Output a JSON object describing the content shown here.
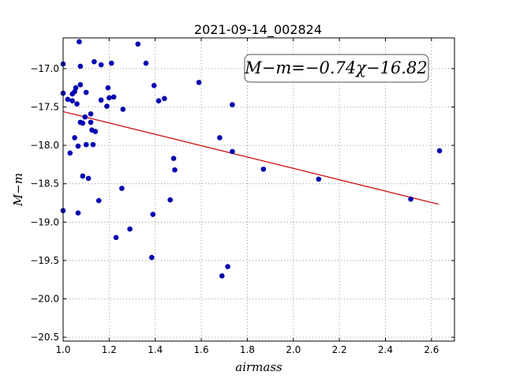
{
  "chart_data": {
    "type": "scatter",
    "title": "2021-09-14_002824",
    "xlabel": "airmass",
    "ylabel": "M−m",
    "xlim": [
      1.0,
      2.7
    ],
    "ylim": [
      -20.55,
      -16.6
    ],
    "x_ticks": [
      1.0,
      1.2,
      1.4,
      1.6,
      1.8,
      2.0,
      2.2,
      2.4,
      2.6
    ],
    "x_tick_labels": [
      "1.0",
      "1.2",
      "1.4",
      "1.6",
      "1.8",
      "2.0",
      "2.2",
      "2.4",
      "2.6"
    ],
    "y_ticks": [
      -17.0,
      -17.5,
      -18.0,
      -18.5,
      -19.0,
      -19.5,
      -20.0,
      -20.5
    ],
    "y_tick_labels": [
      "−17.0",
      "−17.5",
      "−18.0",
      "−18.5",
      "−19.0",
      "−19.5",
      "−20.0",
      "−20.5"
    ],
    "grid": true,
    "annotation": "M−m=−0.74χ−16.82",
    "point_color": "#0000b0",
    "fit_color": "#cc0000",
    "fit": {
      "slope": -0.74,
      "intercept": -16.82,
      "x_range": [
        1.0,
        2.63
      ]
    },
    "points": [
      {
        "x": 1.0,
        "y": -16.94
      },
      {
        "x": 1.0,
        "y": -17.32
      },
      {
        "x": 1.0,
        "y": -18.85
      },
      {
        "x": 1.02,
        "y": -17.4
      },
      {
        "x": 1.03,
        "y": -18.1
      },
      {
        "x": 1.04,
        "y": -17.33
      },
      {
        "x": 1.04,
        "y": -17.42
      },
      {
        "x": 1.05,
        "y": -17.3
      },
      {
        "x": 1.05,
        "y": -17.9
      },
      {
        "x": 1.055,
        "y": -17.25
      },
      {
        "x": 1.06,
        "y": -17.46
      },
      {
        "x": 1.065,
        "y": -18.88
      },
      {
        "x": 1.07,
        "y": -16.65
      },
      {
        "x": 1.065,
        "y": -18.01
      },
      {
        "x": 1.075,
        "y": -16.97
      },
      {
        "x": 1.075,
        "y": -17.21
      },
      {
        "x": 1.075,
        "y": -17.7
      },
      {
        "x": 1.085,
        "y": -17.71
      },
      {
        "x": 1.085,
        "y": -18.4
      },
      {
        "x": 1.095,
        "y": -17.63
      },
      {
        "x": 1.1,
        "y": -17.31
      },
      {
        "x": 1.1,
        "y": -17.99
      },
      {
        "x": 1.11,
        "y": -18.43
      },
      {
        "x": 1.12,
        "y": -17.59
      },
      {
        "x": 1.12,
        "y": -17.7
      },
      {
        "x": 1.125,
        "y": -17.8
      },
      {
        "x": 1.13,
        "y": -17.99
      },
      {
        "x": 1.135,
        "y": -16.91
      },
      {
        "x": 1.14,
        "y": -17.82
      },
      {
        "x": 1.155,
        "y": -18.72
      },
      {
        "x": 1.165,
        "y": -16.95
      },
      {
        "x": 1.165,
        "y": -17.41
      },
      {
        "x": 1.19,
        "y": -17.49
      },
      {
        "x": 1.195,
        "y": -17.25
      },
      {
        "x": 1.2,
        "y": -17.38
      },
      {
        "x": 1.21,
        "y": -16.93
      },
      {
        "x": 1.22,
        "y": -17.37
      },
      {
        "x": 1.23,
        "y": -19.2
      },
      {
        "x": 1.255,
        "y": -18.56
      },
      {
        "x": 1.26,
        "y": -17.53
      },
      {
        "x": 1.29,
        "y": -19.09
      },
      {
        "x": 1.325,
        "y": -16.68
      },
      {
        "x": 1.36,
        "y": -16.93
      },
      {
        "x": 1.385,
        "y": -19.46
      },
      {
        "x": 1.39,
        "y": -18.9
      },
      {
        "x": 1.395,
        "y": -17.22
      },
      {
        "x": 1.415,
        "y": -17.42
      },
      {
        "x": 1.44,
        "y": -17.39
      },
      {
        "x": 1.465,
        "y": -18.71
      },
      {
        "x": 1.48,
        "y": -18.17
      },
      {
        "x": 1.485,
        "y": -18.32
      },
      {
        "x": 1.59,
        "y": -17.18
      },
      {
        "x": 1.68,
        "y": -17.9
      },
      {
        "x": 1.69,
        "y": -19.7
      },
      {
        "x": 1.715,
        "y": -19.58
      },
      {
        "x": 1.735,
        "y": -17.47
      },
      {
        "x": 1.735,
        "y": -18.08
      },
      {
        "x": 1.87,
        "y": -18.31
      },
      {
        "x": 2.11,
        "y": -18.44
      },
      {
        "x": 2.51,
        "y": -18.7
      },
      {
        "x": 2.635,
        "y": -18.07
      }
    ]
  }
}
